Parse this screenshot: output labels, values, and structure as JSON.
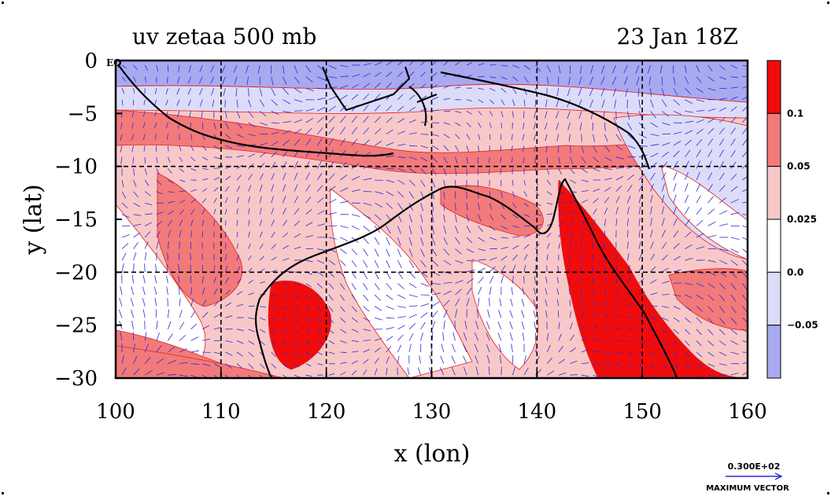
{
  "chart_data": {
    "type": "heatmap",
    "title": "uv zetaa 500 mb",
    "date": "23 Jan 18Z",
    "xlabel": "x (lon)",
    "ylabel": "y (lat)",
    "xlim": [
      100,
      160
    ],
    "ylim": [
      -30,
      0
    ],
    "xticks": [
      100,
      110,
      120,
      130,
      140,
      150,
      160
    ],
    "xtick_labels": [
      "100",
      "110",
      "120",
      "130",
      "140",
      "150",
      "160"
    ],
    "yticks": [
      0,
      -5,
      -10,
      -15,
      -20,
      -25,
      -30
    ],
    "ytick_labels": [
      "0",
      "−5",
      "−10",
      "−15",
      "−20",
      "−25",
      "−30"
    ],
    "y0_suffix": "EQ",
    "gridlines": "dashed every 10 deg lon, 10 deg lat",
    "colorbar": {
      "levels": [
        "0.1",
        "0.05",
        "0.025",
        "0.0",
        "−0.05"
      ],
      "colors": [
        "#f00c0c",
        "#f27a7a",
        "#f8c8c8",
        "#ffffff",
        "#dcdcf8",
        "#a9a9f0"
      ]
    },
    "vector_key": {
      "value": "0.300E+02",
      "label": "MAXIMUM VECTOR"
    },
    "colors": {
      "land_outline": "#000000",
      "vectors": "#2b2bd6",
      "grid": "#000000"
    }
  }
}
